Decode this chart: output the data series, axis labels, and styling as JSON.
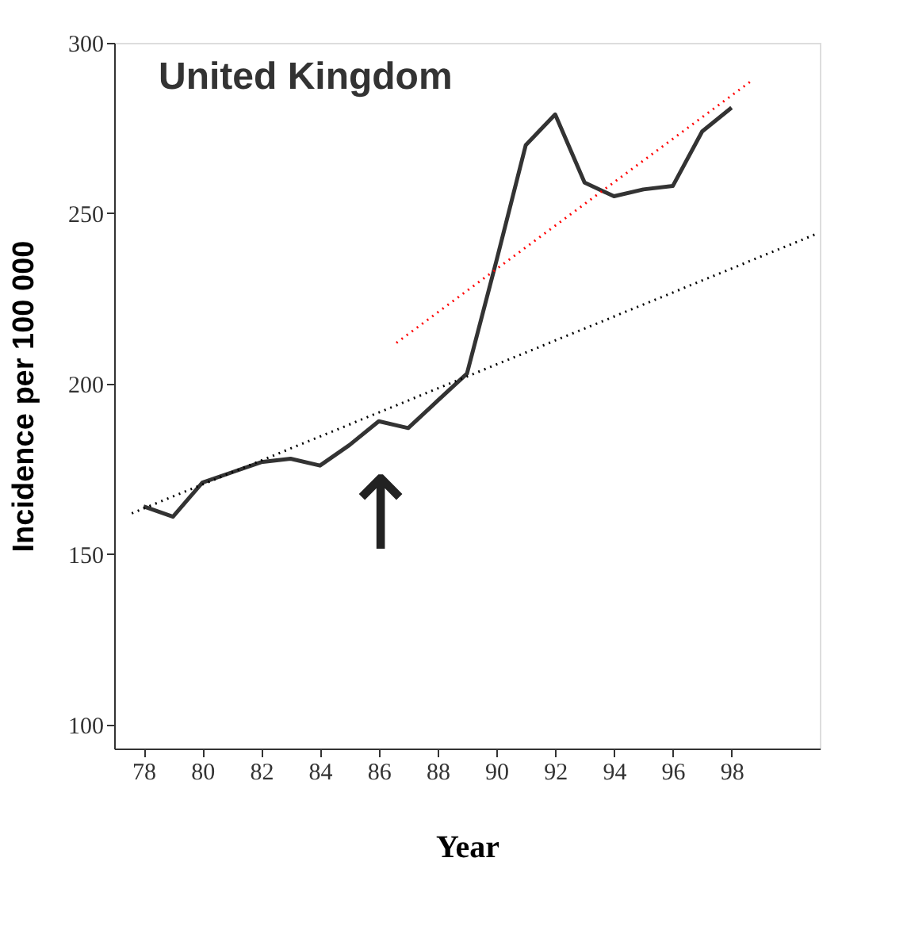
{
  "chart_data": {
    "type": "line",
    "title": "United Kingdom",
    "xlabel": "Year",
    "ylabel": "Incidence per 100 000",
    "xlim": [
      77,
      101
    ],
    "ylim": [
      93,
      300
    ],
    "xticks": [
      78,
      80,
      82,
      84,
      86,
      88,
      90,
      92,
      94,
      96,
      98
    ],
    "yticks": [
      100,
      150,
      200,
      250,
      300
    ],
    "grid": false,
    "marker": "none",
    "series": [
      {
        "color": "#333333",
        "line_style": "solid",
        "x": [
          78,
          79,
          80,
          81,
          82,
          83,
          84,
          85,
          86,
          87,
          88,
          89,
          90,
          91,
          92,
          93,
          94,
          95,
          96,
          97,
          98
        ],
        "values": [
          164,
          161,
          171,
          174,
          177,
          178,
          176,
          182,
          189,
          187,
          195,
          203,
          236,
          270,
          279,
          259,
          255,
          257,
          258,
          274,
          281
        ]
      },
      {
        "color": "#000000",
        "line_style": "dotted",
        "x": [
          77.6,
          100.9
        ],
        "values": [
          162,
          244
        ]
      },
      {
        "color": "#ff0000",
        "line_style": "dotted",
        "x": [
          86.6,
          98.7
        ],
        "values": [
          212,
          289
        ]
      }
    ],
    "annotations": [
      "↑"
    ]
  }
}
